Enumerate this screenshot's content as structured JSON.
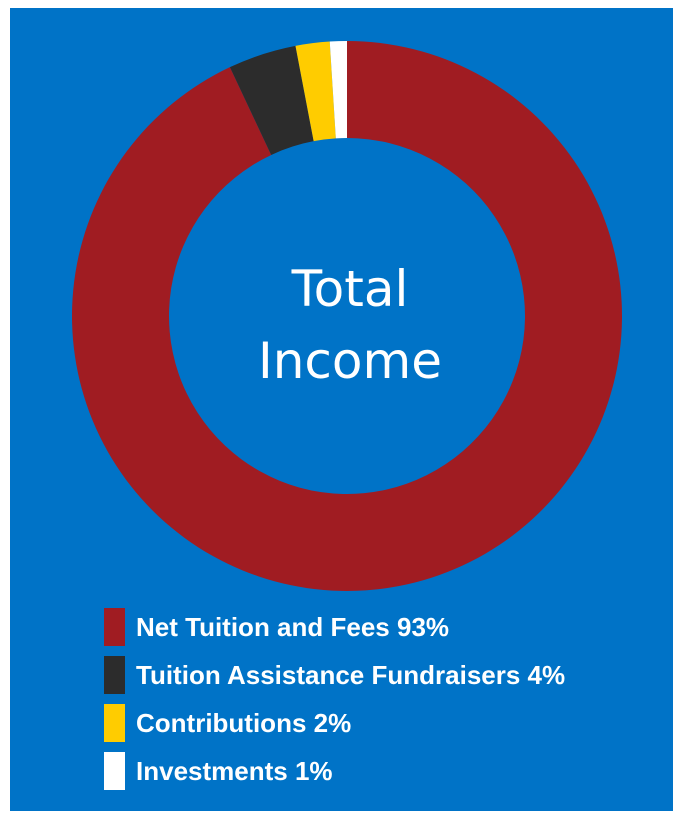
{
  "chart_data": {
    "type": "pie",
    "variant": "donut",
    "title": "",
    "center_text": [
      "Total",
      "Income"
    ],
    "categories": [
      "Net Tuition and Fees",
      "Tuition Assistance Fundraisers",
      "Contributions",
      "Investments"
    ],
    "values": [
      93,
      4,
      2,
      1
    ],
    "unit": "%",
    "colors": [
      "#a01c22",
      "#2c2c2c",
      "#ffcc00",
      "#ffffff"
    ],
    "legend": {
      "placement": "bottom-left",
      "items": [
        {
          "label": "Net Tuition and Fees 93%",
          "color": "#a01c22"
        },
        {
          "label": "Tuition Assistance Fundraisers 4%",
          "color": "#2c2c2c"
        },
        {
          "label": "Contributions 2%",
          "color": "#ffcc00"
        },
        {
          "label": "Investments 1%",
          "color": "#ffffff"
        }
      ]
    },
    "background_color": "#0073c7"
  }
}
